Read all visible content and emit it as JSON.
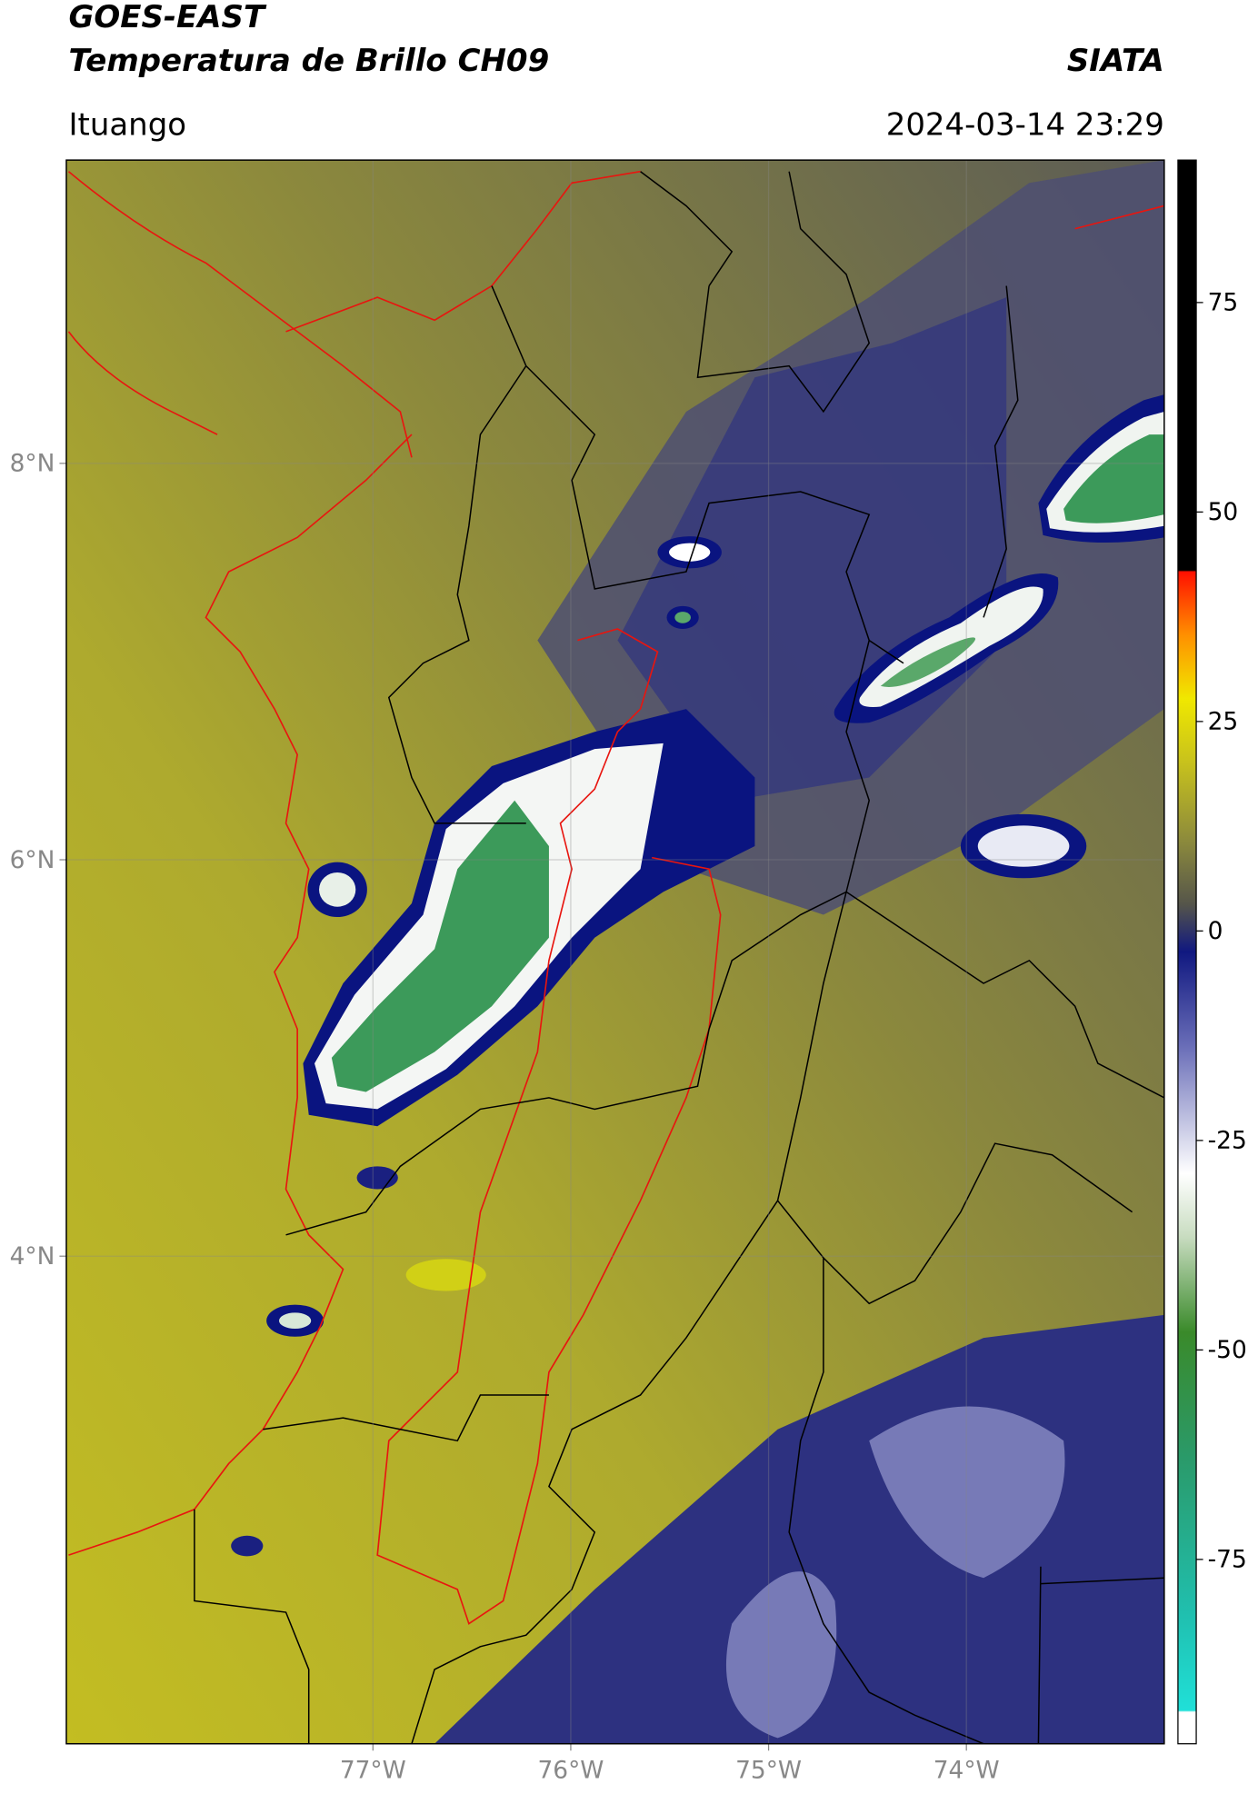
{
  "header": {
    "title": "GOES-EAST",
    "subtitle": "Temperatura de Brillo CH09",
    "credit": "SIATA",
    "location": "Ituango",
    "timestamp": "2024-03-14 23:29"
  },
  "map": {
    "xlim": [
      -78.55,
      -73.0
    ],
    "ylim": [
      1.54,
      9.53
    ],
    "xticks": [
      {
        "value": -77,
        "label": "77°W"
      },
      {
        "value": -76,
        "label": "76°W"
      },
      {
        "value": -75,
        "label": "75°W"
      },
      {
        "value": -74,
        "label": "74°W"
      }
    ],
    "yticks": [
      {
        "value": 4,
        "label": "4°N"
      },
      {
        "value": 6,
        "label": "6°N"
      },
      {
        "value": 8,
        "label": "8°N"
      }
    ],
    "grid": true
  },
  "colorbar": {
    "lim": [
      -97,
      92
    ],
    "ticks": [
      -75,
      -50,
      -25,
      0,
      25,
      50,
      75
    ]
  }
}
